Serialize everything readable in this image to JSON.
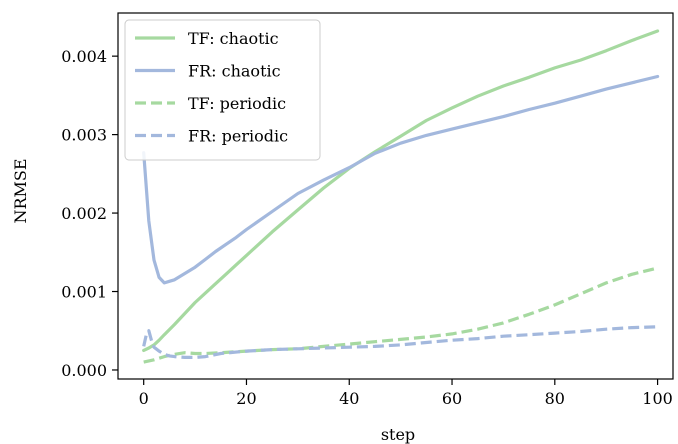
{
  "chart_data": {
    "type": "line",
    "title": "",
    "xlabel": "step",
    "ylabel": "NRMSE",
    "xlim": [
      -5,
      103
    ],
    "ylim": [
      -0.000115,
      0.00455
    ],
    "x_ticks": [
      0,
      20,
      40,
      60,
      80,
      100
    ],
    "x_tick_labels": [
      "0",
      "20",
      "40",
      "60",
      "80",
      "100"
    ],
    "y_ticks": [
      0.0,
      0.001,
      0.002,
      0.003,
      0.004
    ],
    "y_tick_labels": [
      "0.000",
      "0.001",
      "0.002",
      "0.003",
      "0.004"
    ],
    "grid": false,
    "legend_position": "top-left",
    "series": [
      {
        "name": "TF: chaotic",
        "color": "#a6d9a0",
        "dash": "solid",
        "x": [
          0,
          1,
          2,
          3,
          4,
          6,
          8,
          10,
          12,
          14,
          16,
          18,
          20,
          25,
          30,
          35,
          40,
          45,
          50,
          55,
          60,
          65,
          70,
          75,
          80,
          85,
          90,
          95,
          100
        ],
        "y": [
          0.00025,
          0.00028,
          0.00032,
          0.00038,
          0.00045,
          0.00058,
          0.00072,
          0.00086,
          0.00098,
          0.0011,
          0.00122,
          0.00134,
          0.00146,
          0.00176,
          0.00204,
          0.00232,
          0.00257,
          0.00278,
          0.00298,
          0.00318,
          0.00334,
          0.00349,
          0.00362,
          0.00373,
          0.00385,
          0.00395,
          0.00407,
          0.0042,
          0.00432
        ]
      },
      {
        "name": "FR: chaotic",
        "color": "#a3b8dd",
        "dash": "solid",
        "x": [
          0,
          1,
          2,
          3,
          4,
          5,
          6,
          8,
          10,
          12,
          14,
          16,
          18,
          20,
          25,
          30,
          35,
          40,
          45,
          50,
          55,
          60,
          65,
          70,
          75,
          80,
          85,
          90,
          95,
          100
        ],
        "y": [
          0.00277,
          0.0019,
          0.0014,
          0.00118,
          0.00111,
          0.00113,
          0.00115,
          0.00123,
          0.00131,
          0.00141,
          0.00151,
          0.0016,
          0.00169,
          0.00179,
          0.00202,
          0.00225,
          0.00242,
          0.00258,
          0.00276,
          0.00289,
          0.00299,
          0.00307,
          0.00315,
          0.00323,
          0.00332,
          0.0034,
          0.00349,
          0.00358,
          0.00366,
          0.00374
        ]
      },
      {
        "name": "TF: periodic",
        "color": "#a6d9a0",
        "dash": "dashed",
        "x": [
          0,
          2,
          4,
          6,
          8,
          10,
          12,
          15,
          20,
          25,
          30,
          35,
          40,
          45,
          50,
          55,
          60,
          65,
          70,
          75,
          80,
          85,
          90,
          95,
          100
        ],
        "y": [
          0.0001,
          0.00013,
          0.00017,
          0.0002,
          0.00022,
          0.00021,
          0.00021,
          0.00022,
          0.00024,
          0.00026,
          0.00027,
          0.0003,
          0.00033,
          0.00036,
          0.00039,
          0.00042,
          0.00046,
          0.00052,
          0.0006,
          0.00071,
          0.00083,
          0.00097,
          0.00111,
          0.00122,
          0.0013
        ]
      },
      {
        "name": "FR: periodic",
        "color": "#a3b8dd",
        "dash": "dashed",
        "x": [
          0,
          0.5,
          1,
          1.5,
          2,
          3,
          4,
          5,
          6,
          8,
          10,
          12,
          15,
          20,
          25,
          30,
          35,
          40,
          45,
          50,
          55,
          60,
          65,
          70,
          75,
          80,
          85,
          90,
          95,
          100
        ],
        "y": [
          0.0003,
          0.00045,
          0.0005,
          0.00038,
          0.00029,
          0.00024,
          0.0002,
          0.00018,
          0.00017,
          0.00016,
          0.00016,
          0.00017,
          0.00021,
          0.00024,
          0.00026,
          0.00027,
          0.00028,
          0.00029,
          0.0003,
          0.00032,
          0.00035,
          0.00038,
          0.0004,
          0.00043,
          0.00045,
          0.00047,
          0.00049,
          0.00052,
          0.00054,
          0.00055
        ]
      }
    ]
  }
}
